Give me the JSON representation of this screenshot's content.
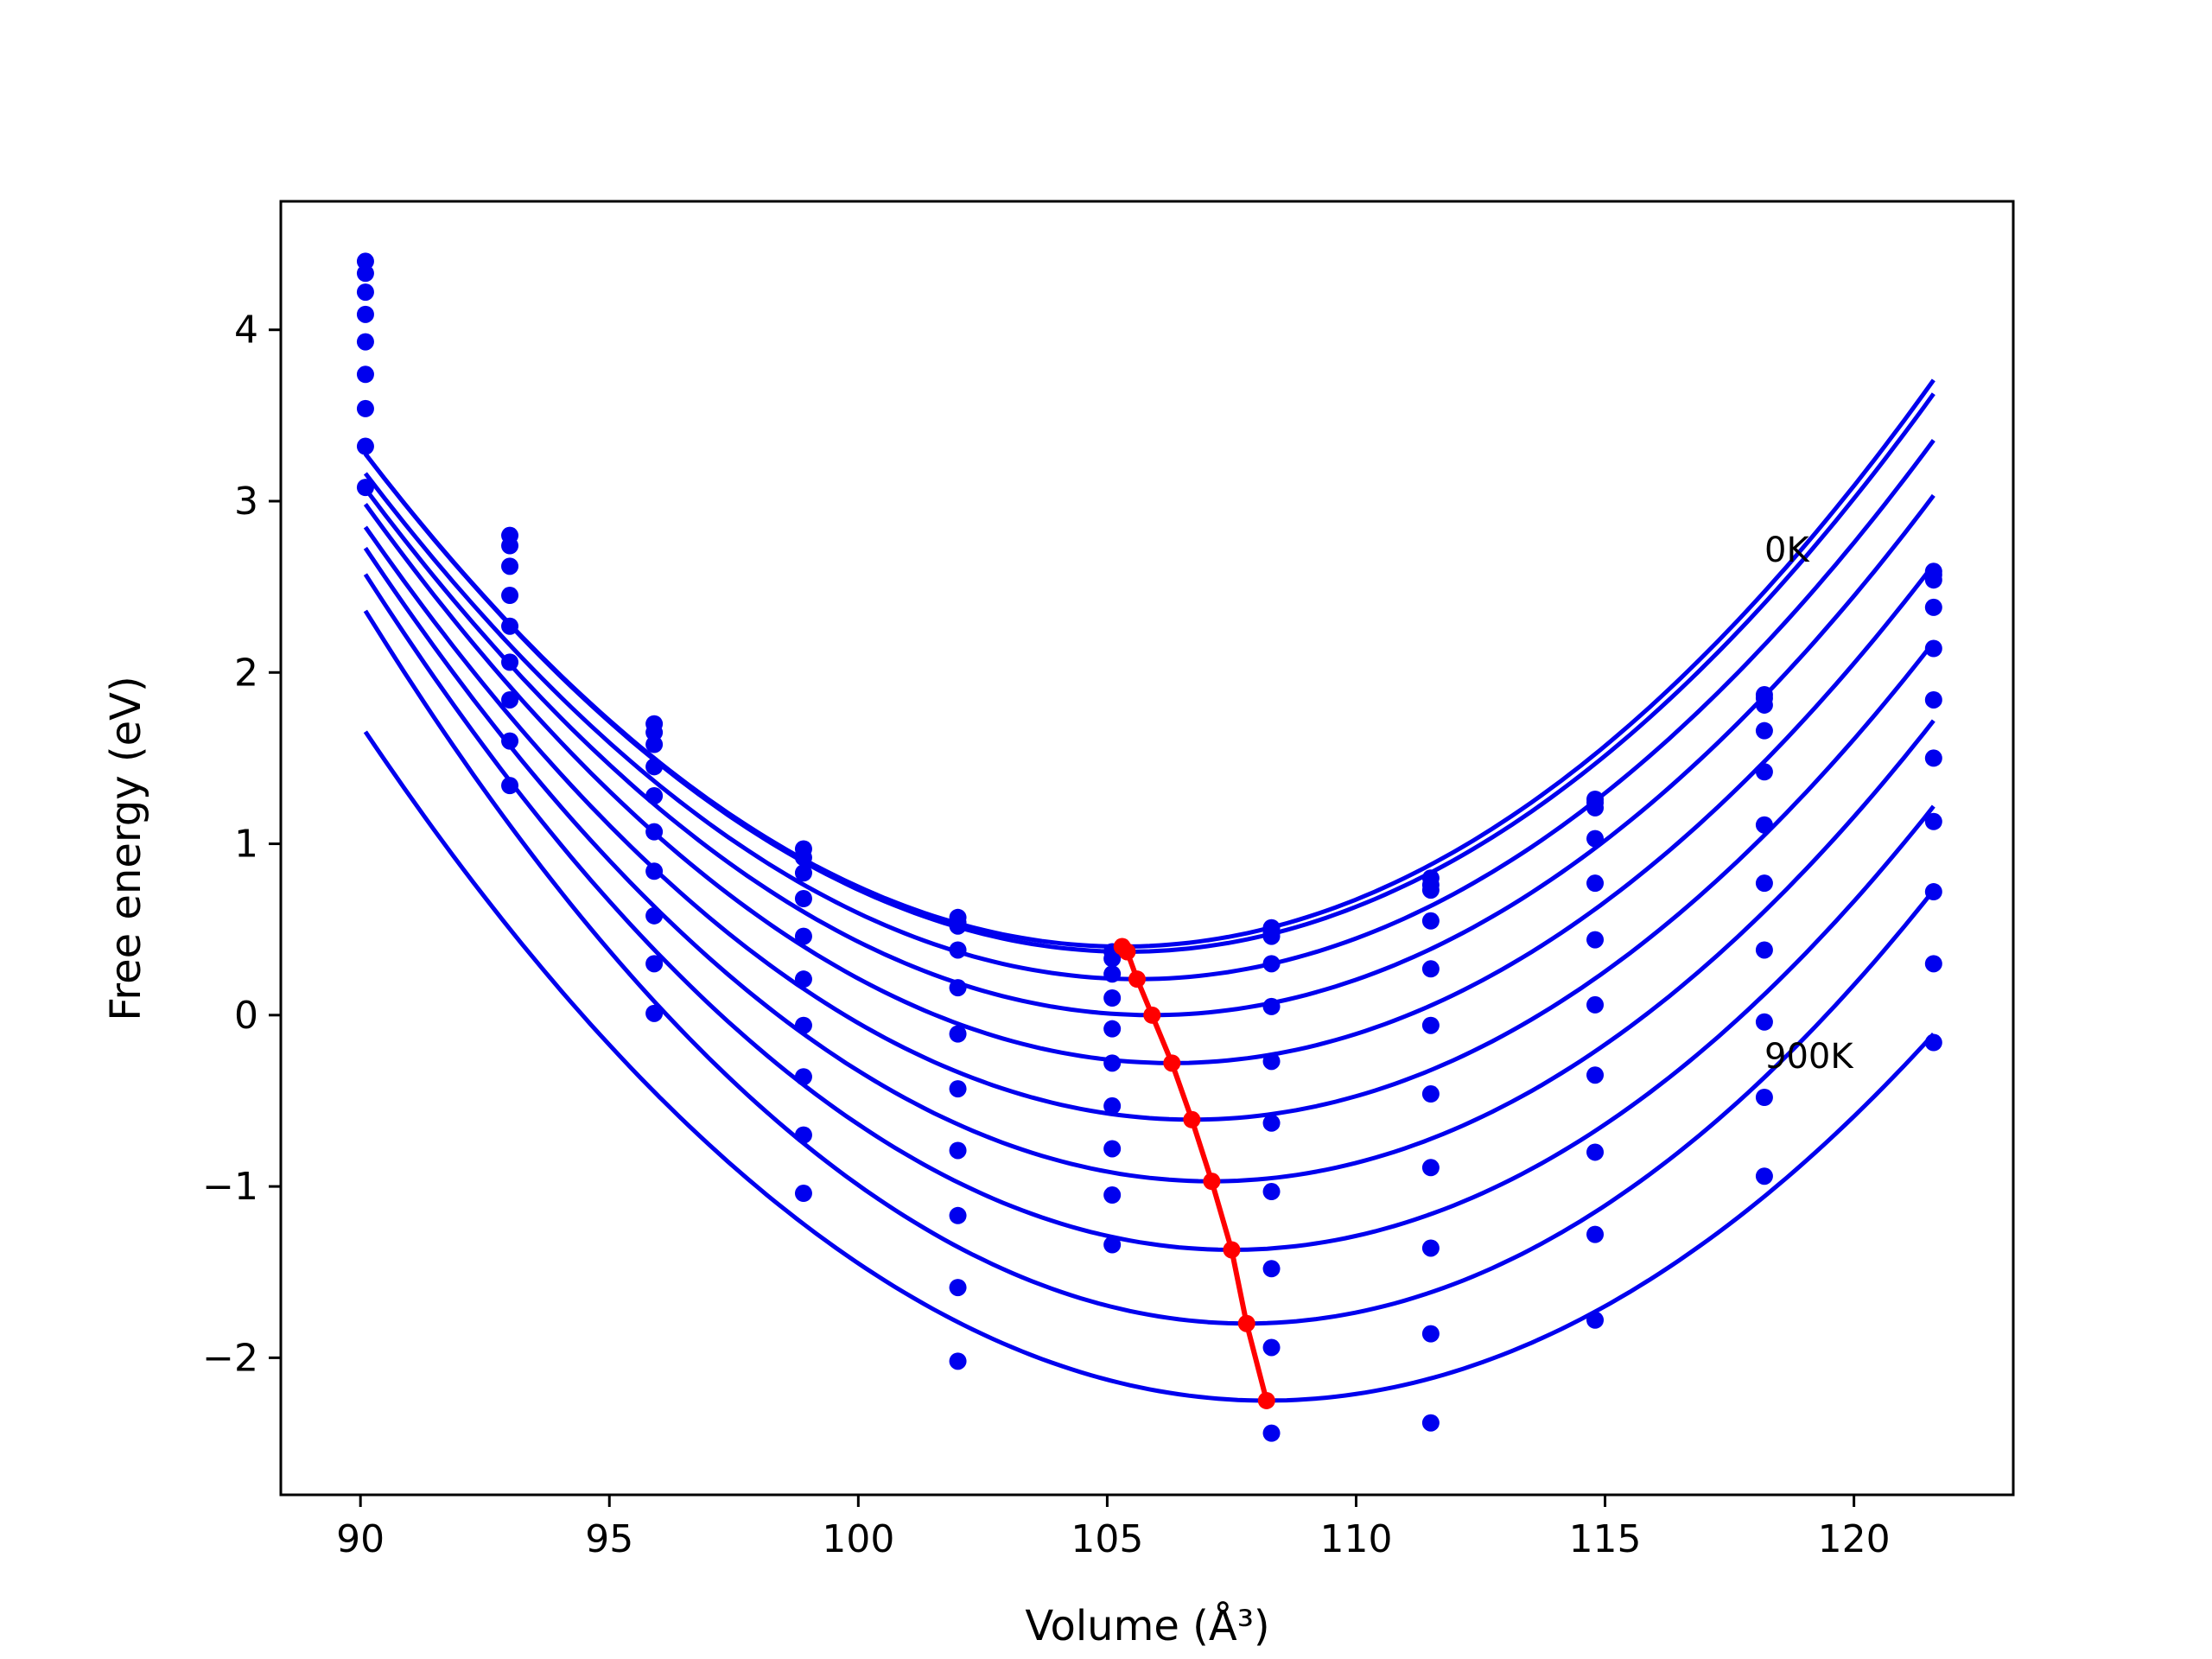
{
  "chart_data": {
    "type": "scatter",
    "xlabel": "Volume (Å³)",
    "ylabel": "Free energy (eV)",
    "xlim": [
      88.4,
      123.2
    ],
    "ylim": [
      -2.8,
      4.75
    ],
    "xticks": [
      90,
      95,
      100,
      105,
      110,
      115,
      120
    ],
    "yticks": [
      -2,
      -1,
      0,
      1,
      2,
      3,
      4
    ],
    "xtick_labels": [
      "90",
      "95",
      "100",
      "105",
      "110",
      "115",
      "120"
    ],
    "ytick_labels": [
      "−2",
      "−1",
      "0",
      "1",
      "2",
      "3",
      "4"
    ],
    "grid": false,
    "colors": {
      "series": "#0000ee",
      "min_line": "#ff0000"
    },
    "annotations": [
      {
        "text": "0K",
        "x": 118.1,
        "y": 2.62
      },
      {
        "text": "900K",
        "x": 118.1,
        "y": -0.35
      }
    ],
    "volumes": [
      90.1,
      93.0,
      95.9,
      98.9,
      102.0,
      105.1,
      108.3,
      111.5,
      114.8,
      118.2,
      121.6
    ],
    "series": [
      {
        "temperature_index": 0,
        "points": [
          4.4,
          2.8,
          1.7,
          0.97,
          0.57,
          0.37,
          0.51,
          0.8,
          1.26,
          1.87,
          2.59
        ],
        "fit_min": {
          "x": 105.3,
          "y": 0.4
        }
      },
      {
        "temperature_index": 1,
        "points": [
          4.33,
          2.74,
          1.65,
          0.92,
          0.54,
          0.33,
          0.48,
          0.76,
          1.24,
          1.85,
          2.57
        ],
        "fit_min": {
          "x": 105.4,
          "y": 0.37
        }
      },
      {
        "temperature_index": 2,
        "points": [
          4.22,
          2.62,
          1.58,
          0.83,
          0.52,
          0.24,
          0.46,
          0.73,
          1.21,
          1.81,
          2.54
        ],
        "fit_min": {
          "x": 105.6,
          "y": 0.21
        }
      },
      {
        "temperature_index": 3,
        "points": [
          4.09,
          2.45,
          1.45,
          0.68,
          0.38,
          0.1,
          0.3,
          0.55,
          1.03,
          1.66,
          2.38
        ],
        "fit_min": {
          "x": 105.9,
          "y": 0.0
        }
      },
      {
        "temperature_index": 4,
        "points": [
          3.93,
          2.27,
          1.28,
          0.46,
          0.16,
          -0.08,
          0.05,
          0.27,
          0.77,
          1.42,
          2.14
        ],
        "fit_min": {
          "x": 106.3,
          "y": -0.28
        }
      },
      {
        "temperature_index": 5,
        "points": [
          3.74,
          2.06,
          1.07,
          0.21,
          -0.11,
          -0.28,
          -0.27,
          -0.06,
          0.44,
          1.11,
          1.84
        ],
        "fit_min": {
          "x": 106.7,
          "y": -0.61
        }
      },
      {
        "temperature_index": 6,
        "points": [
          3.54,
          1.84,
          0.84,
          -0.06,
          -0.43,
          -0.53,
          -0.63,
          -0.46,
          0.06,
          0.77,
          1.5
        ],
        "fit_min": {
          "x": 107.1,
          "y": -0.97
        }
      },
      {
        "temperature_index": 7,
        "points": [
          3.32,
          1.6,
          0.58,
          -0.36,
          -0.79,
          -0.78,
          -1.03,
          -0.89,
          -0.35,
          0.38,
          1.13
        ],
        "fit_min": {
          "x": 107.5,
          "y": -1.37
        }
      },
      {
        "temperature_index": 8,
        "points": [
          3.08,
          1.34,
          0.3,
          -0.7,
          -1.17,
          -1.05,
          -1.48,
          -1.36,
          -0.8,
          -0.04,
          0.72
        ],
        "fit_min": {
          "x": 107.8,
          "y": -1.8
        }
      },
      {
        "temperature_index": 9,
        "points": [
          null,
          null,
          0.01,
          -1.04,
          -1.59,
          -1.34,
          -1.94,
          -1.86,
          -1.28,
          -0.48,
          0.3
        ],
        "fit_min": {
          "x": 108.2,
          "y": -2.25
        }
      },
      {
        "temperature_index": 10,
        "points": [
          null,
          null,
          null,
          null,
          -2.02,
          null,
          -2.44,
          -2.38,
          -1.78,
          -0.94,
          -0.16
        ],
        "fit_min": null
      }
    ]
  }
}
